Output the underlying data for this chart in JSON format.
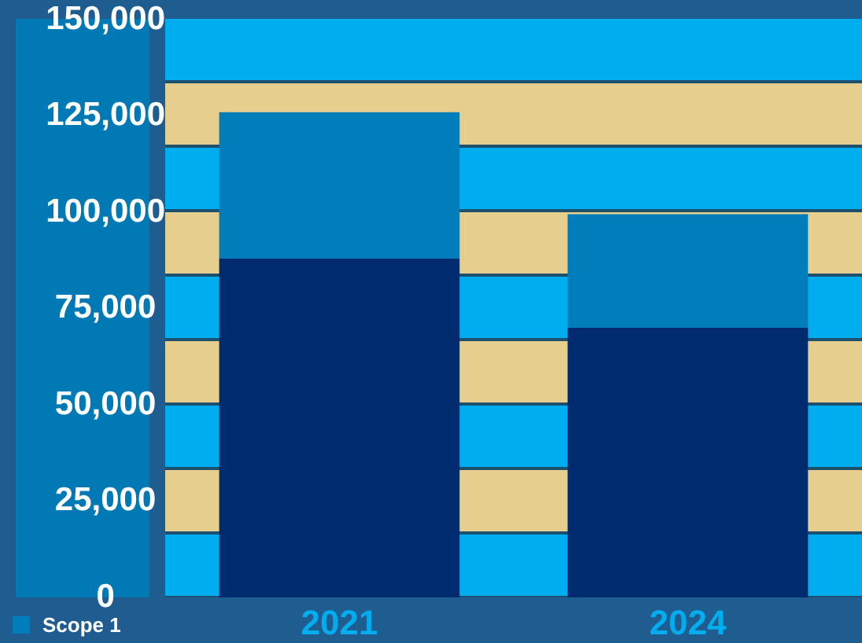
{
  "chart_data": {
    "type": "bar",
    "stacked": true,
    "categories": [
      "2021",
      "2024"
    ],
    "series": [
      {
        "color": "#002b6f",
        "values": [
          88000,
          70000
        ]
      },
      {
        "name": "Scope 1",
        "color": "#007dba",
        "values": [
          38000,
          29500
        ]
      }
    ],
    "ylim": [
      0,
      150000
    ],
    "yticks": [
      0,
      {
        "value": 25000,
        "label": "25,000"
      },
      {
        "value": 50000,
        "label": "50,000"
      },
      {
        "value": 75000,
        "label": "75,000"
      },
      {
        "value": 100000,
        "label": "100,000"
      },
      {
        "value": 125000,
        "label": "125,000"
      },
      {
        "value": 150000,
        "label": "150,000"
      }
    ],
    "grid": false,
    "legend": "bottom left"
  }
}
